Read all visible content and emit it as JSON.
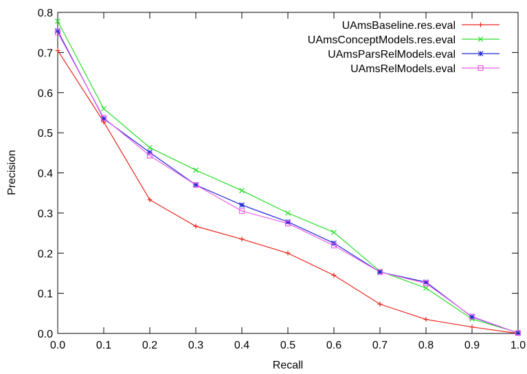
{
  "chart_data": {
    "type": "line",
    "title": "",
    "xlabel": "Recall",
    "ylabel": "Precision",
    "xlim": [
      0.0,
      1.0
    ],
    "ylim": [
      0.0,
      0.8
    ],
    "x_ticks": [
      "0.0",
      "0.1",
      "0.2",
      "0.3",
      "0.4",
      "0.5",
      "0.6",
      "0.7",
      "0.8",
      "0.9",
      "1.0"
    ],
    "y_ticks": [
      "0.0",
      "0.1",
      "0.2",
      "0.3",
      "0.4",
      "0.5",
      "0.6",
      "0.7",
      "0.8"
    ],
    "x": [
      0.0,
      0.1,
      0.2,
      0.3,
      0.4,
      0.5,
      0.6,
      0.7,
      0.8,
      0.9,
      1.0
    ],
    "grid": false,
    "legend_position": "top-right",
    "series": [
      {
        "name": "UAmsBaseline.res.eval",
        "color": "#e8231b",
        "marker": "plus",
        "values": [
          0.705,
          0.527,
          0.333,
          0.267,
          0.235,
          0.2,
          0.145,
          0.073,
          0.035,
          0.016,
          0.0
        ]
      },
      {
        "name": "UAmsConceptModels.res.eval",
        "color": "#27dd27",
        "marker": "cross",
        "values": [
          0.778,
          0.56,
          0.463,
          0.407,
          0.356,
          0.3,
          0.252,
          0.155,
          0.113,
          0.036,
          0.002
        ]
      },
      {
        "name": "UAmsParsRelModels.eval",
        "color": "#1d25d6",
        "marker": "star",
        "values": [
          0.754,
          0.535,
          0.451,
          0.37,
          0.32,
          0.278,
          0.225,
          0.153,
          0.128,
          0.041,
          0.001
        ]
      },
      {
        "name": "UAmsRelModels.eval",
        "color": "#e95ee9",
        "marker": "square",
        "values": [
          0.75,
          0.537,
          0.443,
          0.37,
          0.305,
          0.274,
          0.219,
          0.153,
          0.125,
          0.042,
          0.001
        ]
      }
    ]
  }
}
